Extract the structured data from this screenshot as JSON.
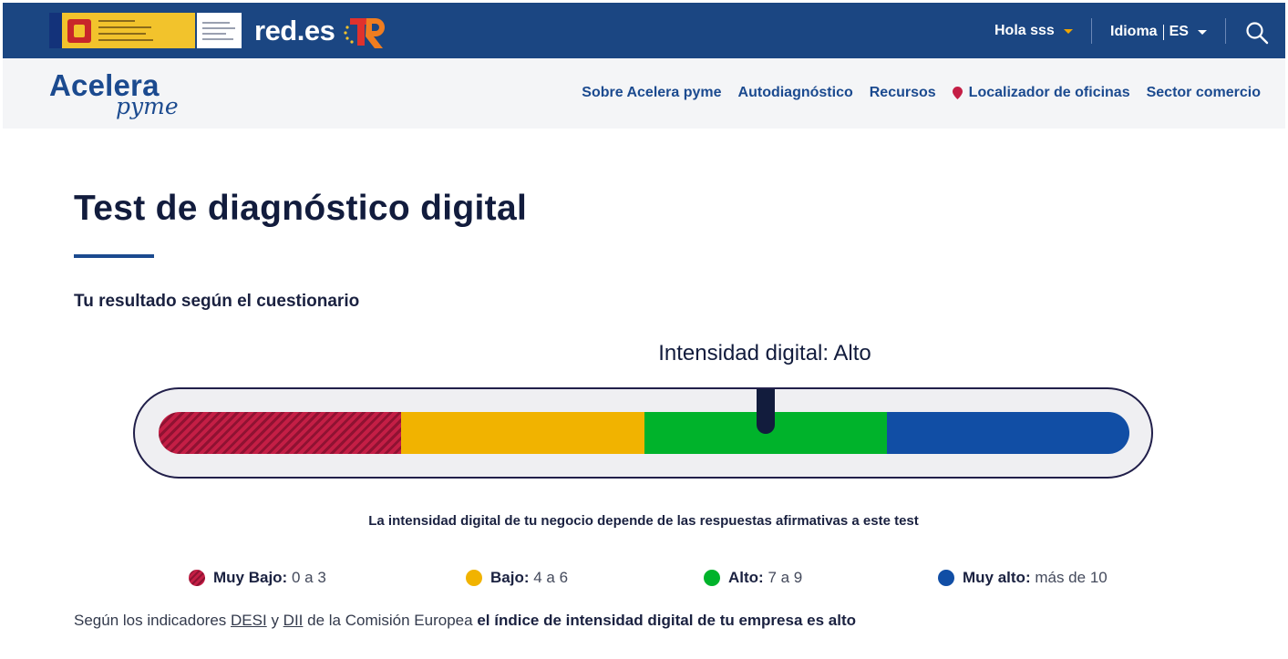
{
  "header": {
    "brand_name": "red.es",
    "greeting": "Hola sss",
    "language_label": "Idioma",
    "language_code": "ES",
    "search_icon": "search-icon",
    "colors": {
      "top_bar": "#1b4682",
      "accent_caret": "#f0a500"
    }
  },
  "nav": {
    "brand_line1": "Acelera",
    "brand_line2": "pyme",
    "items": [
      {
        "label": "Sobre Acelera pyme"
      },
      {
        "label": "Autodiagnóstico"
      },
      {
        "label": "Recursos"
      },
      {
        "label": "Localizador de oficinas",
        "icon": "map-pin-icon"
      },
      {
        "label": "Sector comercio"
      }
    ]
  },
  "main": {
    "title": "Test de diagnóstico digital",
    "subtitle": "Tu resultado según el cuestionario",
    "result_label": "Intensidad digital: Alto",
    "result_level": "Alto",
    "gauge_position_fraction": 0.625,
    "explanation": "La intensidad digital de tu negocio depende de las respuestas afirmativas a este test",
    "legend": [
      {
        "name": "Muy Bajo:",
        "range": "0 a 3",
        "color": "#c41e45"
      },
      {
        "name": "Bajo:",
        "range": "4 a 6",
        "color": "#f1b300"
      },
      {
        "name": "Alto:",
        "range": "7 a 9",
        "color": "#00b32b"
      },
      {
        "name": "Muy alto:",
        "range": "más de 10",
        "color": "#114ea5"
      }
    ],
    "footer": {
      "prefix": "Según los indicadores",
      "link1": "DESI",
      "conj": "y",
      "link2": "DII",
      "middle": "de la Comisión Europea",
      "bold": "el índice de intensidad digital de tu empresa es alto"
    }
  }
}
